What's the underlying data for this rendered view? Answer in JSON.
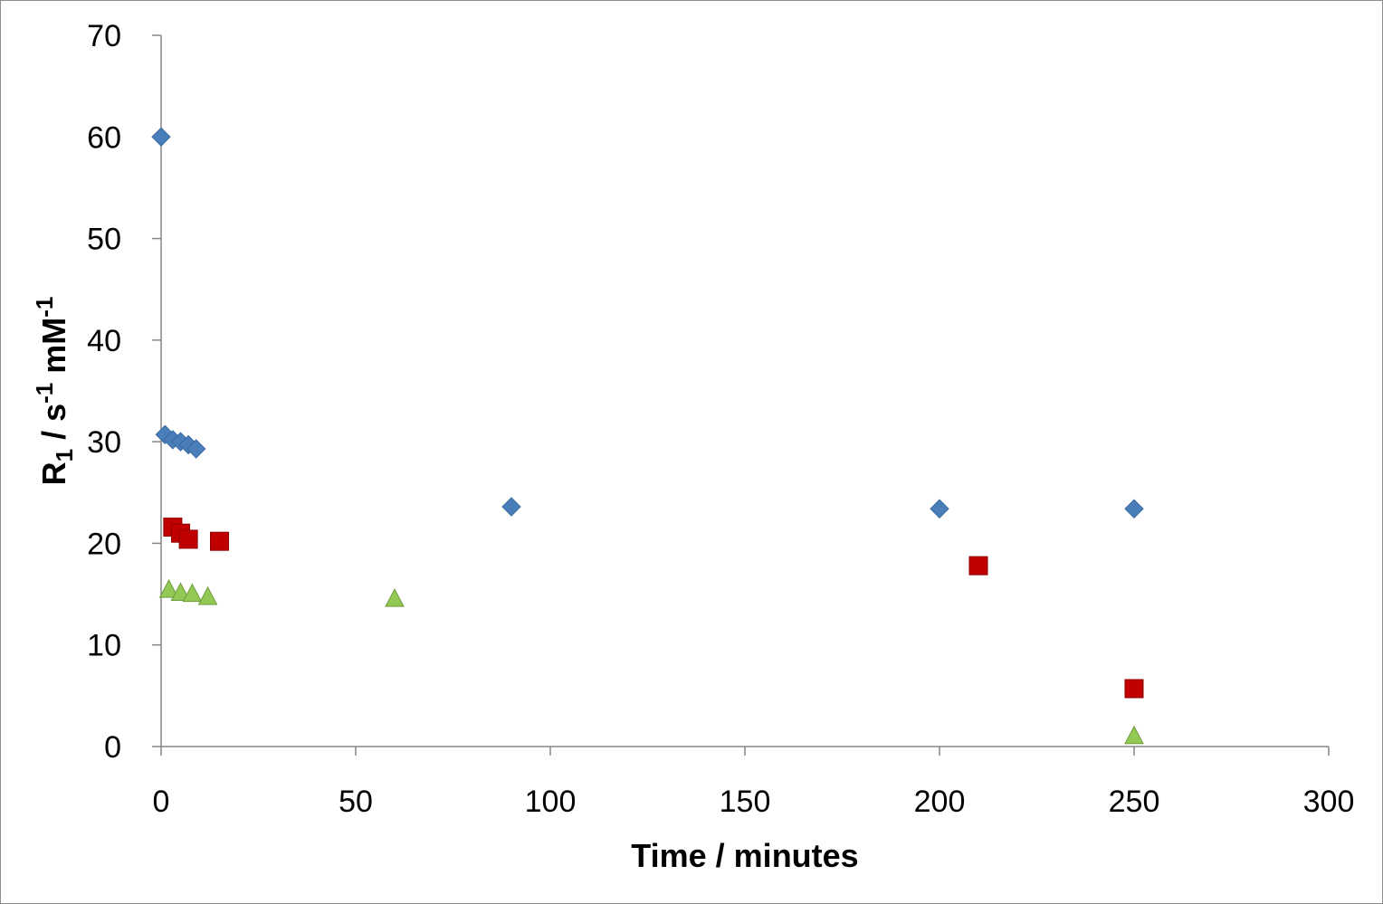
{
  "chart_data": {
    "type": "scatter",
    "xlabel": "Time / minutes",
    "ylabel": {
      "main": "R",
      "sub": "1",
      "mid": " / s",
      "sup1": "-1",
      "mid2": " mM",
      "sup2": "-1"
    },
    "xlim": [
      0,
      300
    ],
    "ylim": [
      0,
      70
    ],
    "x_ticks": [
      0,
      50,
      100,
      150,
      200,
      250,
      300
    ],
    "y_ticks": [
      0,
      10,
      20,
      30,
      40,
      50,
      60,
      70
    ],
    "grid": false,
    "legend": "none",
    "series": [
      {
        "marker": "diamond",
        "color": "#4a7ebb",
        "points": [
          [
            0,
            60
          ],
          [
            1,
            30.7
          ],
          [
            3,
            30.2
          ],
          [
            5,
            30
          ],
          [
            7,
            29.7
          ],
          [
            9,
            29.3
          ],
          [
            90,
            23.6
          ],
          [
            200,
            23.4
          ],
          [
            250,
            23.4
          ]
        ]
      },
      {
        "marker": "square",
        "color": "#c00000",
        "points": [
          [
            3,
            21.6
          ],
          [
            5,
            21
          ],
          [
            7,
            20.4
          ],
          [
            15,
            20.2
          ],
          [
            210,
            17.8
          ],
          [
            250,
            5.7
          ]
        ]
      },
      {
        "marker": "triangle",
        "color": "#92c954",
        "points": [
          [
            2,
            15.4
          ],
          [
            5,
            15.1
          ],
          [
            8,
            15
          ],
          [
            12,
            14.7
          ],
          [
            60,
            14.5
          ],
          [
            250,
            1
          ]
        ]
      }
    ]
  }
}
